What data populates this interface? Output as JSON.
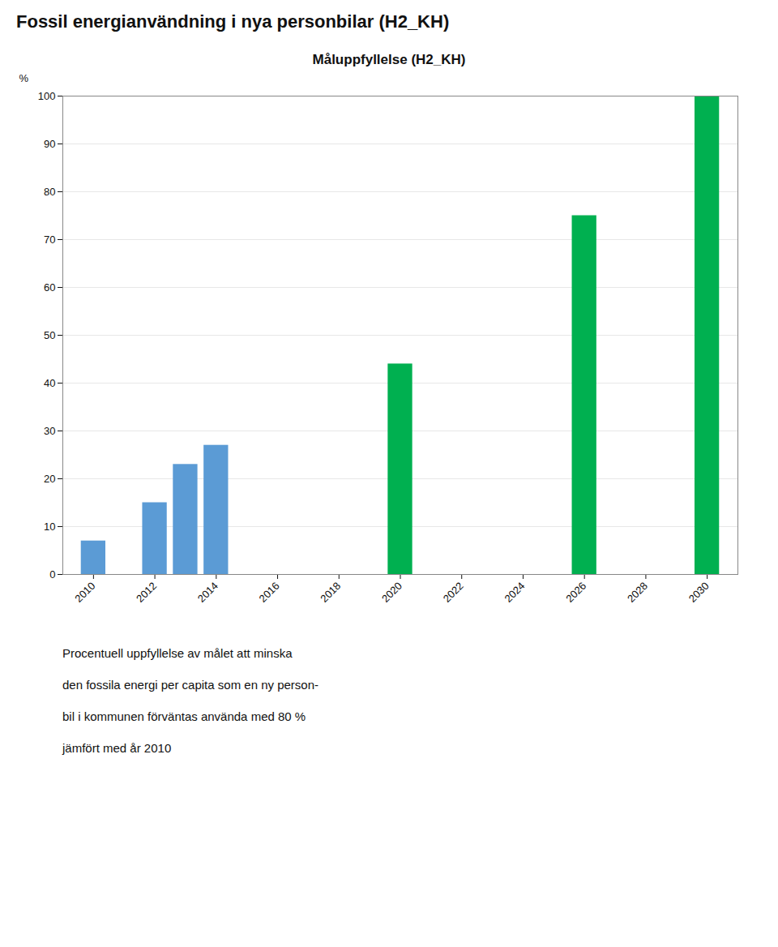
{
  "chart_data": {
    "type": "bar",
    "title": "Fossil energianvändning i nya personbilar (H2_KH)",
    "subtitle": "Måluppfyllelse (H2_KH)",
    "ylabel": "%",
    "caption": [
      "Procentuell uppfyllelse av målet att minska",
      "den fossila energi per capita som en ny person-",
      "bil i kommunen förväntas använda med 80 %",
      "jämfört med år 2010"
    ],
    "series": [
      {
        "color": "#5B9BD5",
        "x": [
          2010,
          2012,
          2013,
          2014
        ],
        "values": [
          7,
          15,
          23,
          27
        ]
      },
      {
        "color": "#00B050",
        "x": [
          2020,
          2026,
          2030
        ],
        "values": [
          44,
          75,
          100
        ]
      }
    ],
    "xlim": [
      2009,
      2031
    ],
    "xticks": [
      2010,
      2012,
      2014,
      2016,
      2018,
      2020,
      2022,
      2024,
      2026,
      2028,
      2030
    ],
    "ylim": [
      0,
      100
    ],
    "yticks": [
      0,
      10,
      20,
      30,
      40,
      50,
      60,
      70,
      80,
      90,
      100
    ],
    "grid": true
  }
}
